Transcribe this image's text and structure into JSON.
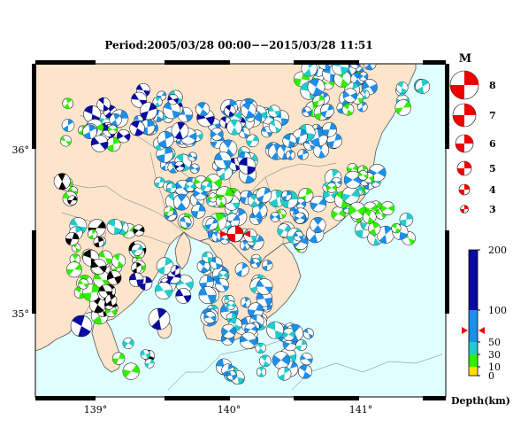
{
  "title": "Period:2005/03/28 00:00−−2015/03/28 11:51",
  "map": {
    "lon_ticks": [
      "139°",
      "140°",
      "141°"
    ],
    "lat_ticks": [
      "36°",
      "35°"
    ],
    "colors": {
      "sea": "#e0ffff",
      "land": "#fde5cc",
      "coast": "#555555",
      "border": "#9a9a9a"
    },
    "mechanisms": {
      "shallow_yellow": "#ffe000",
      "green": "#33ee00",
      "cyan": "#22cccc",
      "blue": "#1e8ee8",
      "deep_navy": "#0a0aa0",
      "main_shock": "#ee0000"
    }
  },
  "magnitude_legend": {
    "header": "M",
    "entries": [
      "8",
      "7",
      "6",
      "5",
      "4",
      "3"
    ]
  },
  "depth_scale": {
    "ticks": [
      "200",
      "100",
      "50",
      "30",
      "10",
      "0"
    ],
    "label": "Depth(km)"
  }
}
